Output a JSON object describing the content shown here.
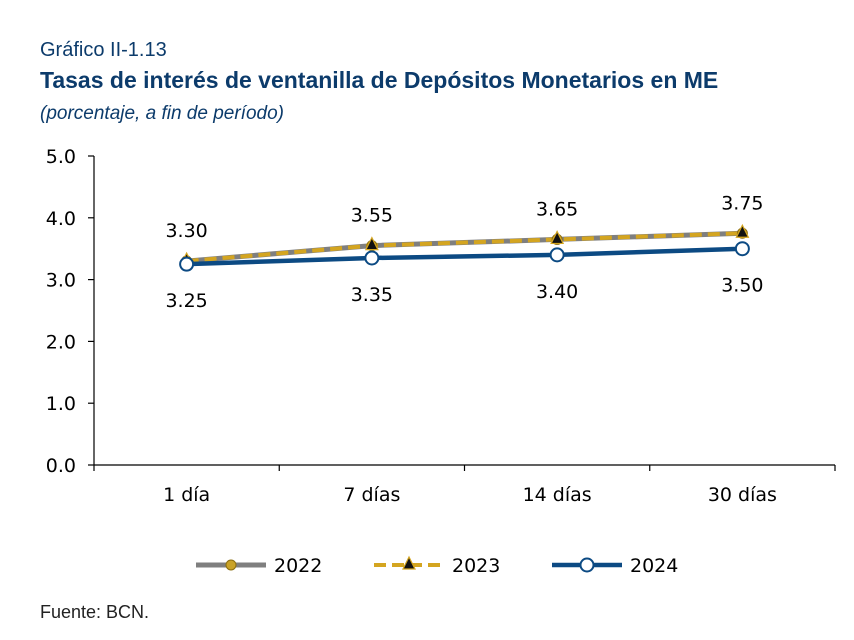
{
  "header": {
    "label": "Gráfico II-1.13",
    "title": "Tasas de interés de ventanilla de Depósitos Monetarios en ME",
    "subtitle": "(porcentaje, a fin de período)"
  },
  "source": "Fuente: BCN.",
  "chart_data": {
    "type": "line",
    "categories": [
      "1 día",
      "7 días",
      "14 días",
      "30 días"
    ],
    "ylim": [
      0,
      5
    ],
    "yticks": [
      "0.0",
      "1.0",
      "2.0",
      "3.0",
      "4.0",
      "5.0"
    ],
    "grid": false,
    "legend": "bottom",
    "series": [
      {
        "name": "2022",
        "values": [
          3.3,
          3.55,
          3.65,
          3.75
        ],
        "color": "#7f7f7f",
        "marker": "circle-gold"
      },
      {
        "name": "2023",
        "values": [
          3.3,
          3.55,
          3.65,
          3.75
        ],
        "color": "#d4a520",
        "marker": "triangle"
      },
      {
        "name": "2024",
        "values": [
          3.25,
          3.35,
          3.4,
          3.5
        ],
        "color": "#0c4a83",
        "marker": "circle-white"
      }
    ],
    "data_labels": {
      "upper": [
        "3.30",
        "3.55",
        "3.65",
        "3.75"
      ],
      "lower": [
        "3.25",
        "3.35",
        "3.40",
        "3.50"
      ]
    }
  }
}
